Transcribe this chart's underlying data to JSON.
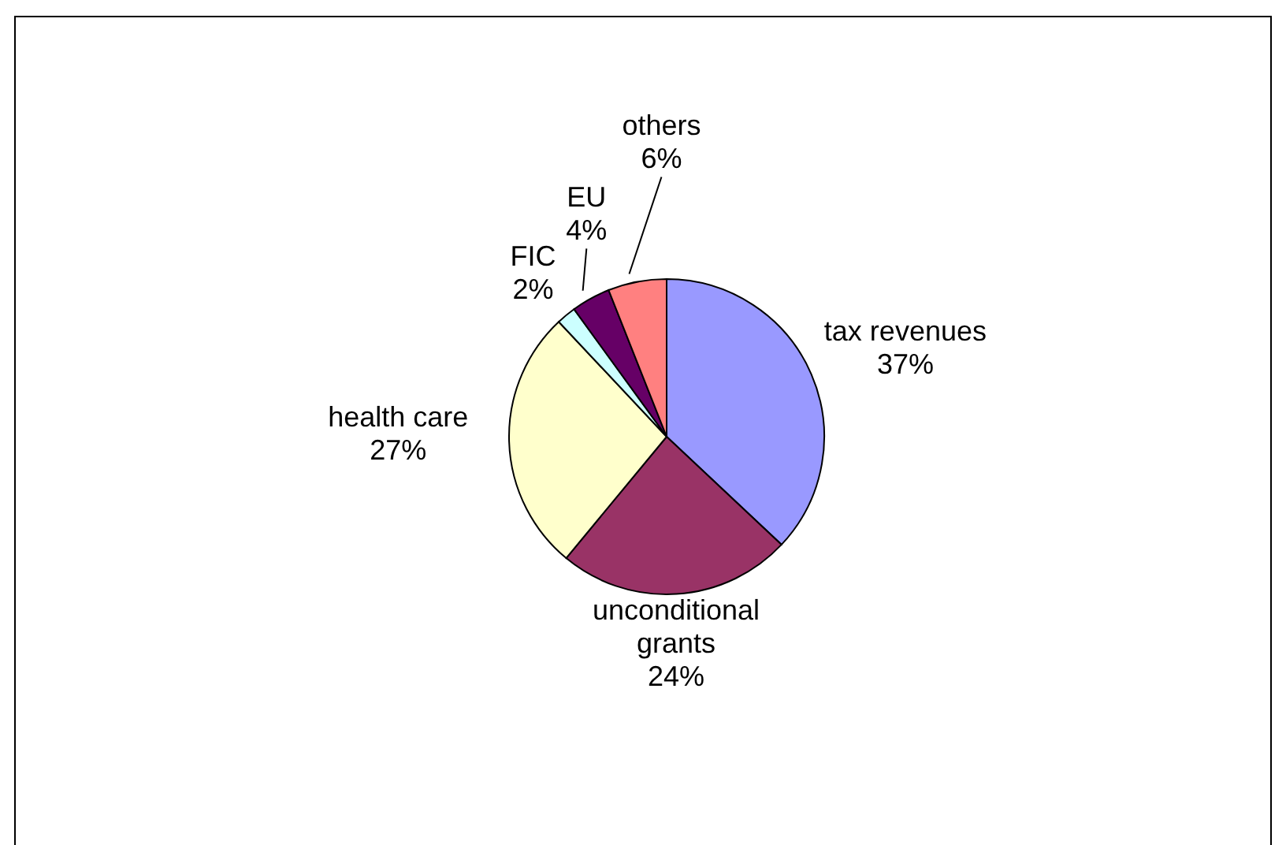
{
  "chart_data": {
    "type": "pie",
    "categories": [
      "tax revenues",
      "unconditional grants",
      "health care",
      "FIC",
      "EU",
      "others"
    ],
    "values": [
      37,
      24,
      27,
      2,
      4,
      6
    ],
    "value_labels": [
      "37%",
      "24%",
      "27%",
      "2%",
      "4%",
      "6%"
    ],
    "colors": [
      "#9999ff",
      "#993366",
      "#ffffcc",
      "#ccffff",
      "#660066",
      "#ff8080"
    ],
    "legend": false
  }
}
